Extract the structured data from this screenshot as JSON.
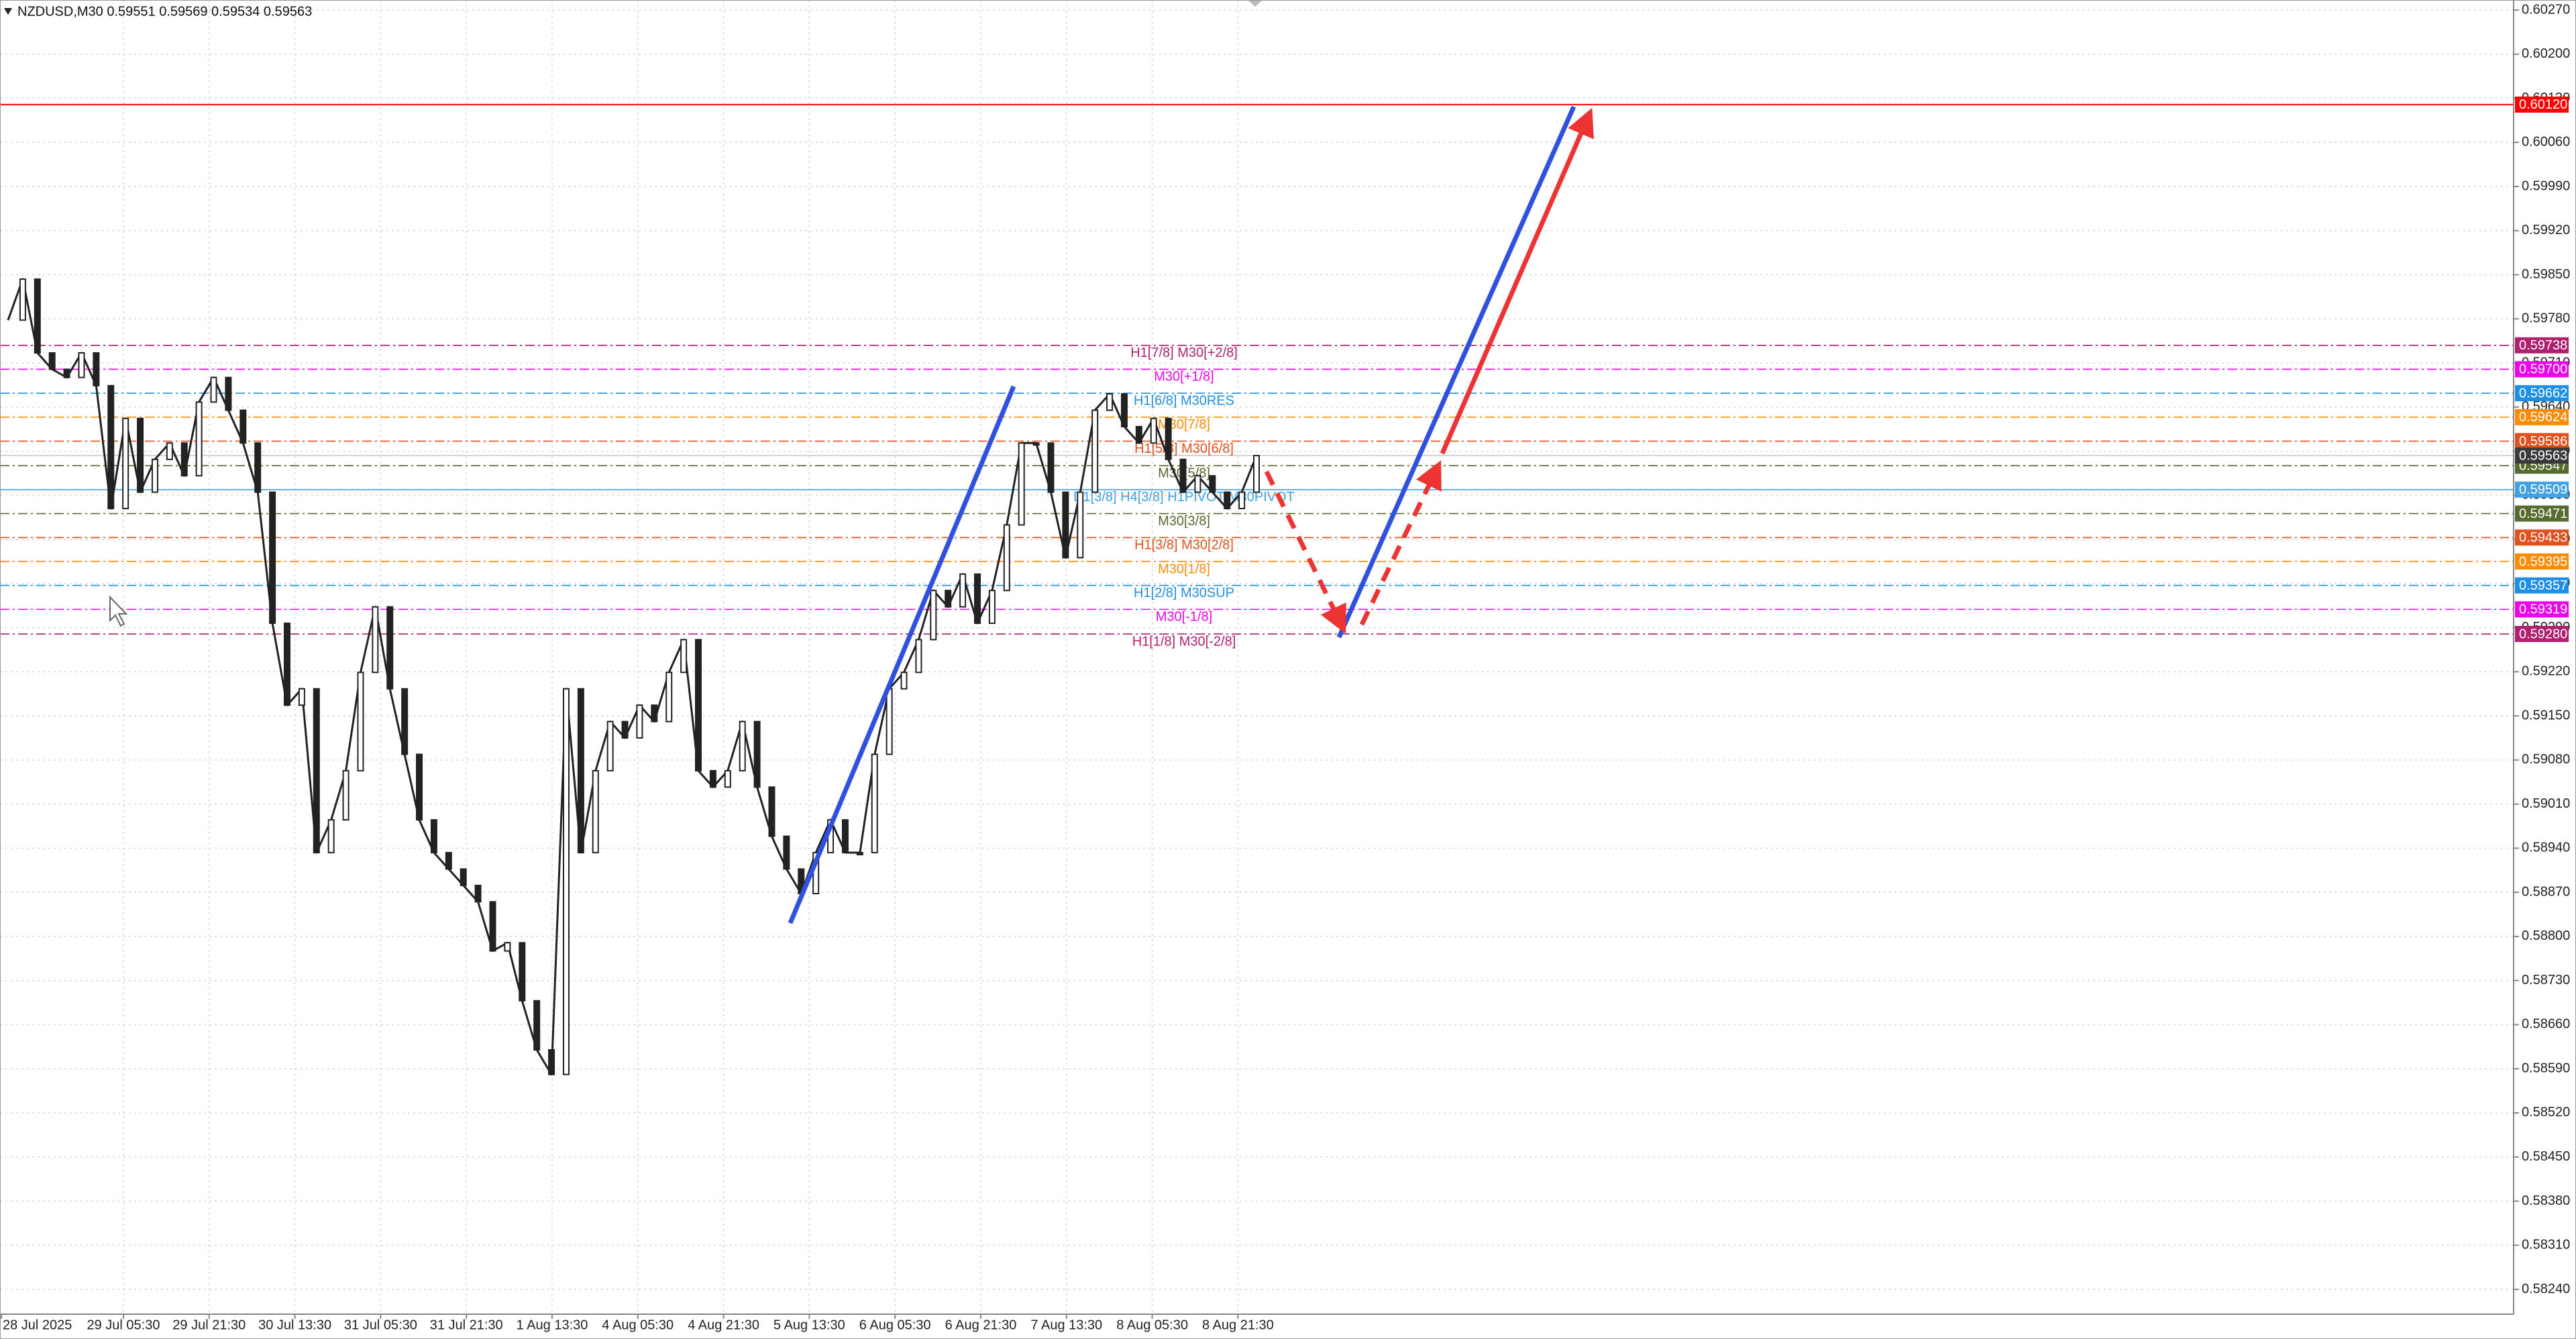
{
  "header": "NZDUSD,M30  0.59551 0.59569 0.59534 0.59563",
  "price_axis": {
    "ylim": [
      0.5824,
      0.6027
    ],
    "ticks": [
      {
        "value": 0.6027,
        "label": "0.60270"
      },
      {
        "value": 0.602,
        "label": "0.60200"
      },
      {
        "value": 0.6013,
        "label": "0.60130"
      },
      {
        "value": 0.6006,
        "label": "0.60060"
      },
      {
        "value": 0.5999,
        "label": "0.59990"
      },
      {
        "value": 0.5992,
        "label": "0.59920"
      },
      {
        "value": 0.5985,
        "label": "0.59850"
      },
      {
        "value": 0.5978,
        "label": "0.59780"
      },
      {
        "value": 0.5971,
        "label": "0.59710"
      },
      {
        "value": 0.5964,
        "label": "0.59640"
      },
      {
        "value": 0.5957,
        "label": "0.59570"
      },
      {
        "value": 0.595,
        "label": "0.59500"
      },
      {
        "value": 0.5943,
        "label": "0.59430"
      },
      {
        "value": 0.5936,
        "label": "0.59360"
      },
      {
        "value": 0.5929,
        "label": "0.59290"
      },
      {
        "value": 0.5922,
        "label": "0.59220"
      },
      {
        "value": 0.5915,
        "label": "0.59150"
      },
      {
        "value": 0.5908,
        "label": "0.59080"
      },
      {
        "value": 0.5901,
        "label": "0.59010"
      },
      {
        "value": 0.5894,
        "label": "0.58940"
      },
      {
        "value": 0.5887,
        "label": "0.58870"
      },
      {
        "value": 0.588,
        "label": "0.58800"
      },
      {
        "value": 0.5873,
        "label": "0.58730"
      },
      {
        "value": 0.5866,
        "label": "0.58660"
      },
      {
        "value": 0.5859,
        "label": "0.58590"
      },
      {
        "value": 0.5852,
        "label": "0.58520"
      },
      {
        "value": 0.5845,
        "label": "0.58450"
      },
      {
        "value": 0.5838,
        "label": "0.58380"
      },
      {
        "value": 0.5831,
        "label": "0.58310"
      },
      {
        "value": 0.5824,
        "label": "0.58240"
      }
    ]
  },
  "time_axis": {
    "labels": [
      "28 Jul 2025",
      "29 Jul 05:30",
      "29 Jul 21:30",
      "30 Jul 13:30",
      "31 Jul 05:30",
      "31 Jul 21:30",
      "1 Aug 13:30",
      "4 Aug 05:30",
      "4 Aug 21:30",
      "5 Aug 13:30",
      "6 Aug 05:30",
      "6 Aug 21:30",
      "7 Aug 13:30",
      "8 Aug 05:30",
      "8 Aug 21:30"
    ]
  },
  "closes": [
    0.59778,
    0.59843,
    0.59726,
    0.597,
    0.59687,
    0.59726,
    0.59674,
    0.59479,
    0.59622,
    0.59505,
    0.59557,
    0.59583,
    0.59531,
    0.59648,
    0.59687,
    0.59635,
    0.59583,
    0.59505,
    0.59297,
    0.59167,
    0.59193,
    0.58933,
    0.58985,
    0.59063,
    0.59219,
    0.59323,
    0.59193,
    0.59089,
    0.58985,
    0.58933,
    0.58907,
    0.58881,
    0.58855,
    0.58777,
    0.5879,
    0.58698,
    0.5862,
    0.58581,
    0.59193,
    0.58933,
    0.59063,
    0.59141,
    0.59115,
    0.59167,
    0.59141,
    0.59219,
    0.59271,
    0.59063,
    0.59037,
    0.59063,
    0.59141,
    0.59037,
    0.58959,
    0.58907,
    0.58868,
    0.58933,
    0.58985,
    0.58933,
    0.58933,
    0.59089,
    0.59193,
    0.59219,
    0.59271,
    0.59349,
    0.59323,
    0.59375,
    0.59297,
    0.59349,
    0.59453,
    0.59583,
    0.59583,
    0.59505,
    0.59401,
    0.59505,
    0.59635,
    0.59661,
    0.59609,
    0.59583,
    0.59622,
    0.59557,
    0.59505,
    0.59531,
    0.59505,
    0.59479,
    0.59505,
    0.59563
  ],
  "resistance_line": {
    "value": 0.6012,
    "label": "0.60120",
    "color": "#ff0000"
  },
  "current_price": {
    "value": 0.59563,
    "label": "0.59563",
    "color": "#3a3a3a"
  },
  "levels": [
    {
      "name": "H1[7/8] M30[+2/8]",
      "value": 0.59738,
      "label": "0.59738",
      "color": "#b0206f"
    },
    {
      "name": "M30[+1/8]",
      "value": 0.597,
      "label": "0.59700",
      "color": "#ee00ee"
    },
    {
      "name": "H1[6/8] M30RES",
      "value": 0.59662,
      "label": "0.59662",
      "color": "#1e8fe6"
    },
    {
      "name": "M30[7/8]",
      "value": 0.59624,
      "label": "0.59624",
      "color": "#ff8c00"
    },
    {
      "name": "H1[5/8] M30[6/8]",
      "value": 0.59586,
      "label": "0.59586",
      "color": "#e2501c"
    },
    {
      "name": "M30[5/8]",
      "value": 0.59547,
      "label": "0.59547",
      "color": "#556b2f"
    },
    {
      "name": "D1[3/8] H4[3/8] H1PIVOT M30PIVOT",
      "value": 0.59509,
      "label": "0.59509",
      "color": "#3fa2e4"
    },
    {
      "name": "M30[3/8]",
      "value": 0.59471,
      "label": "0.59471",
      "color": "#556b2f"
    },
    {
      "name": "H1[3/8] M30[2/8]",
      "value": 0.59433,
      "label": "0.59433",
      "color": "#e2501c"
    },
    {
      "name": "M30[1/8]",
      "value": 0.59395,
      "label": "0.59395",
      "color": "#ff8c00"
    },
    {
      "name": "H1[2/8] M30SUP",
      "value": 0.59357,
      "label": "0.59357",
      "color": "#1e8fe6"
    },
    {
      "name": "M30[-1/8]",
      "value": 0.59319,
      "label": "0.59319",
      "color": "#ee00ee"
    },
    {
      "name": "H1[1/8] M30[-2/8]",
      "value": 0.5928,
      "label": "0.59280",
      "color": "#b0206f"
    }
  ]
}
